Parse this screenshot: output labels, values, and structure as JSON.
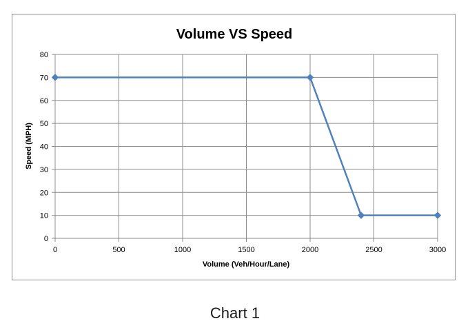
{
  "chart_data": {
    "type": "line",
    "title": "Volume VS Speed",
    "xlabel": "Volume (Veh/Hour/Lane)",
    "ylabel": "Speed (MPH)",
    "xlim": [
      0,
      3000
    ],
    "ylim": [
      0,
      80
    ],
    "x_ticks": [
      0,
      500,
      1000,
      1500,
      2000,
      2500,
      3000
    ],
    "y_ticks": [
      0,
      10,
      20,
      30,
      40,
      50,
      60,
      70,
      80
    ],
    "grid": true,
    "legend": "none",
    "series": [
      {
        "x": [
          0,
          2000,
          2400,
          3000
        ],
        "y": [
          70,
          70,
          10,
          10
        ],
        "color": "#4f81bd",
        "marker": "diamond"
      }
    ]
  },
  "caption": "Chart 1"
}
